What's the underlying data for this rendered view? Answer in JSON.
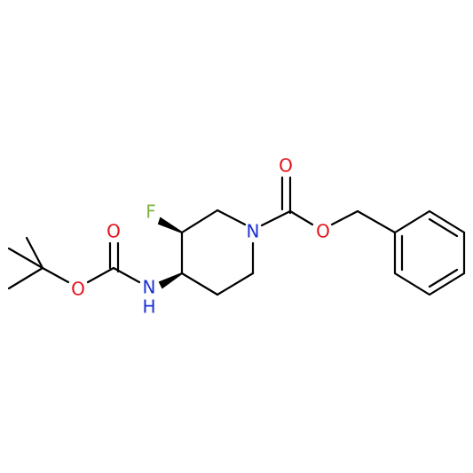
{
  "atoms": [
    {
      "label": "O"
    },
    {
      "label": "O"
    },
    {
      "label": "F"
    },
    {
      "label": "N"
    },
    {
      "label": "O"
    },
    {
      "label": "O"
    },
    {
      "label": "N"
    },
    {
      "label": "H"
    }
  ]
}
